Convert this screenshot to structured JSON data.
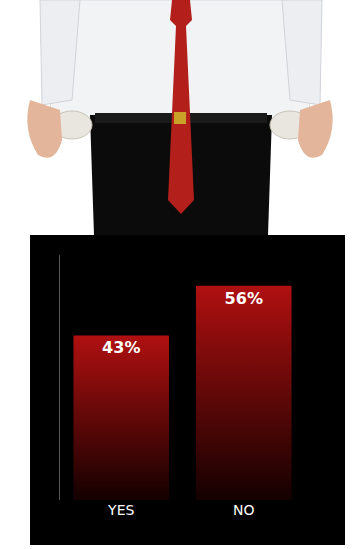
{
  "chart_data": {
    "type": "bar",
    "categories": [
      "YES",
      "NO"
    ],
    "values": [
      43,
      56
    ],
    "value_labels": [
      "43%",
      "56%"
    ],
    "data_labels": true,
    "color": "#b01010",
    "ylim": [
      0,
      64
    ],
    "yticks": [],
    "grid": false,
    "tick_labels": "x"
  }
}
